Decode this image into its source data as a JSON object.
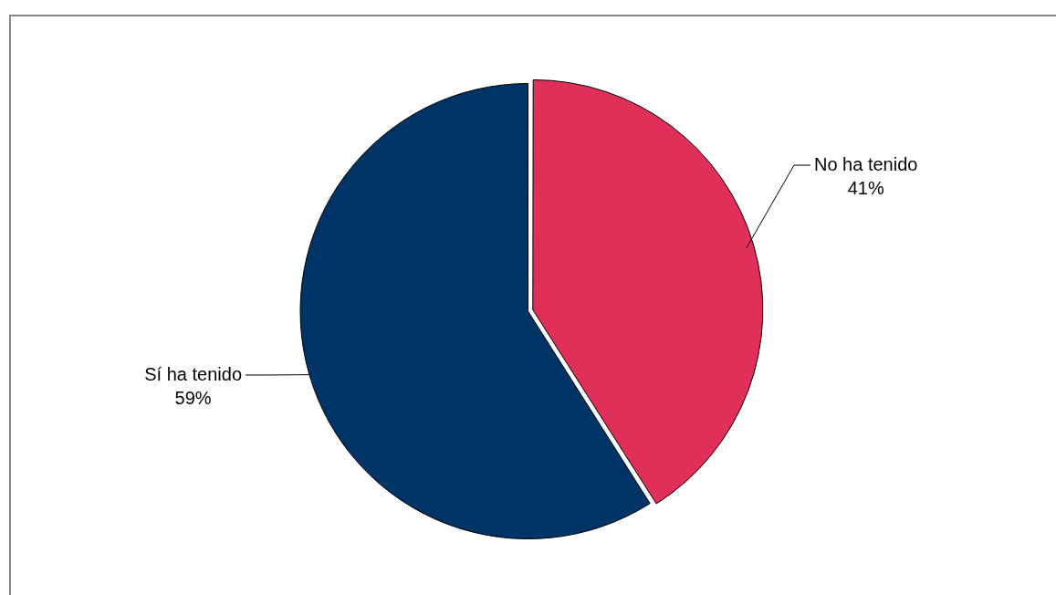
{
  "chart_data": {
    "type": "pie",
    "categories": [
      "No ha tenido",
      "Sí ha tenido"
    ],
    "values": [
      41,
      59
    ],
    "colors": [
      "#e0305a",
      "#003366"
    ],
    "value_labels": [
      "41%",
      "59%"
    ],
    "legend": false
  }
}
